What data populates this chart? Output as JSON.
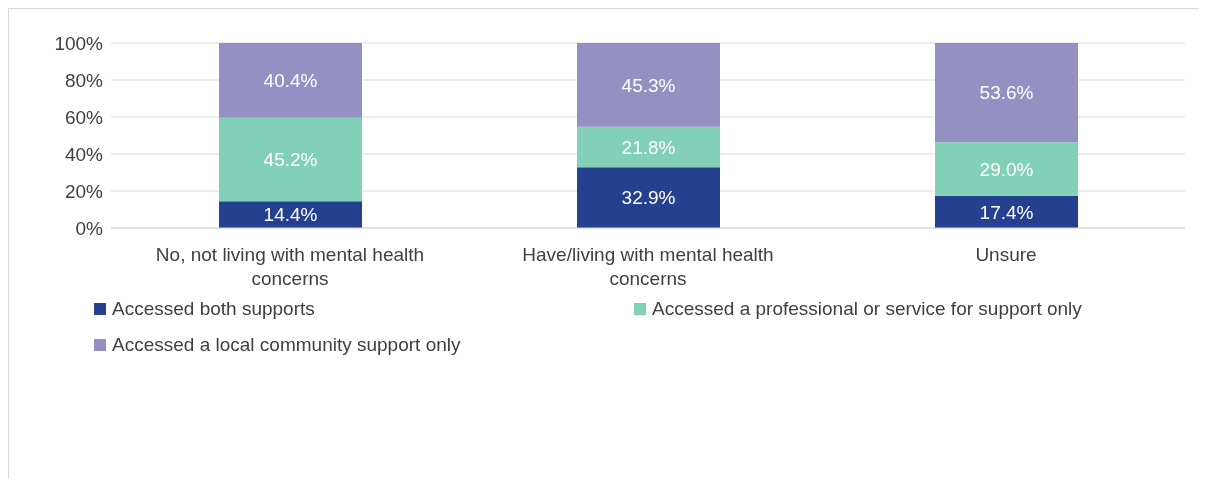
{
  "chart_data": {
    "type": "bar",
    "stacked": true,
    "categories": [
      "No, not living with mental health concerns",
      "Have/living with mental health concerns",
      "Unsure"
    ],
    "series": [
      {
        "name": "Accessed both supports",
        "color": "#24408e",
        "values": [
          14.4,
          32.9,
          17.4
        ],
        "value_labels": [
          "14.4%",
          "32.9%",
          "17.4%"
        ]
      },
      {
        "name": "Accessed a professional or service for support only",
        "color": "#83d0b8",
        "values": [
          45.2,
          21.8,
          29.0
        ],
        "value_labels": [
          "45.2%",
          "21.8%",
          "29.0%"
        ]
      },
      {
        "name": "Accessed a local community support only",
        "color": "#9491c2",
        "values": [
          40.4,
          45.3,
          53.6
        ],
        "value_labels": [
          "40.4%",
          "45.3%",
          "53.6%"
        ]
      }
    ],
    "ylim": [
      0,
      100
    ],
    "yticks": [
      {
        "value": 0,
        "label": "0%"
      },
      {
        "value": 20,
        "label": "20%"
      },
      {
        "value": 40,
        "label": "40%"
      },
      {
        "value": 60,
        "label": "60%"
      },
      {
        "value": 80,
        "label": "80%"
      },
      {
        "value": 100,
        "label": "100%"
      }
    ],
    "grid": "y",
    "legend": "bottom"
  }
}
